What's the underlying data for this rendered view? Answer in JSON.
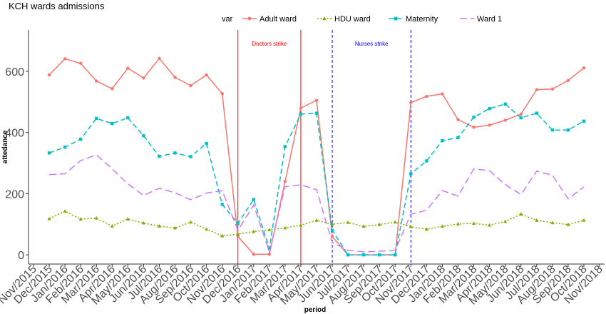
{
  "chart_data": {
    "type": "line",
    "title": "KCH wards admissions",
    "xlabel": "period",
    "ylabel": "attedance",
    "legend_title": "var",
    "legend_position": "top",
    "grid": false,
    "ylim": [
      -30,
      735
    ],
    "y_ticks": [
      0,
      200,
      400,
      600
    ],
    "x_ticks": [
      "Nov/2015",
      "Dec/2015",
      "Jan/2016",
      "Feb/2016",
      "Mar/2016",
      "Apr/2016",
      "May/2016",
      "Jun/2016",
      "Jul/2016",
      "Aug/2016",
      "Sep/2016",
      "Oct/2016",
      "Nov/2016",
      "Dec/2016",
      "Jan/2017",
      "Feb/2017",
      "Mar/2017",
      "Apr/2017",
      "May/2017",
      "Jun/2017",
      "Jul/2017",
      "Aug/2017",
      "Sep/2017",
      "Oct/2017",
      "Nov/2017",
      "Dec/2017",
      "Jan/2018",
      "Feb/2018",
      "Mar/2018",
      "Apr/2018",
      "May/2018",
      "Jun/2018",
      "Jul/2018",
      "Aug/2018",
      "Sep/2018",
      "Oct/2018",
      "Nov/2018"
    ],
    "x": [
      "Dec/2015",
      "Jan/2016",
      "Feb/2016",
      "Mar/2016",
      "Apr/2016",
      "May/2016",
      "Jun/2016",
      "Jul/2016",
      "Aug/2016",
      "Sep/2016",
      "Oct/2016",
      "Nov/2016",
      "Dec/2016",
      "Jan/2017",
      "Feb/2017",
      "Mar/2017",
      "Apr/2017",
      "May/2017",
      "Jun/2017",
      "Jul/2017",
      "Aug/2017",
      "Sep/2017",
      "Oct/2017",
      "Nov/2017",
      "Dec/2017",
      "Jan/2018",
      "Feb/2018",
      "Mar/2018",
      "Apr/2018",
      "May/2018",
      "Jun/2018",
      "Jul/2018",
      "Aug/2018",
      "Sep/2018",
      "Oct/2018"
    ],
    "series": [
      {
        "name": "Adult ward",
        "color": "#f8766d",
        "linestyle": "solid",
        "marker": "circle",
        "values": [
          588,
          641,
          626,
          568,
          543,
          610,
          578,
          642,
          580,
          553,
          588,
          527,
          60,
          2,
          2,
          240,
          480,
          505,
          60,
          0,
          0,
          0,
          0,
          498,
          518,
          526,
          442,
          417,
          424,
          440,
          460,
          540,
          542,
          570,
          611
        ]
      },
      {
        "name": "HDU ward",
        "color": "#7cae00",
        "linestyle": "dotted",
        "marker": "triangle",
        "values": [
          118,
          143,
          117,
          120,
          94,
          117,
          104,
          94,
          88,
          107,
          84,
          62,
          68,
          76,
          82,
          88,
          97,
          113,
          100,
          106,
          93,
          99,
          107,
          92,
          84,
          93,
          101,
          103,
          97,
          109,
          133,
          113,
          105,
          99,
          113
        ]
      },
      {
        "name": "Maternity",
        "color": "#00bfc4",
        "linestyle": "dashed",
        "marker": "square",
        "values": [
          333,
          352,
          378,
          446,
          429,
          448,
          389,
          322,
          333,
          321,
          364,
          165,
          103,
          181,
          21,
          354,
          460,
          463,
          80,
          0,
          0,
          0,
          0,
          265,
          307,
          373,
          383,
          450,
          478,
          493,
          448,
          463,
          408,
          408,
          437
        ]
      },
      {
        "name": "Ward 1",
        "color": "#c77cff",
        "linestyle": "longdash",
        "marker": "none",
        "values": [
          262,
          265,
          308,
          327,
          281,
          232,
          194,
          218,
          203,
          180,
          202,
          210,
          80,
          163,
          10,
          223,
          229,
          213,
          40,
          15,
          10,
          12,
          15,
          133,
          146,
          210,
          192,
          281,
          275,
          230,
          197,
          274,
          260,
          183,
          222
        ]
      }
    ],
    "annotations": [
      {
        "text": "Doctors strike",
        "color": "#ff0000",
        "linestyle": "solid",
        "start": "Dec/2016",
        "end": "Apr/2017"
      },
      {
        "text": "Nurses strike",
        "color": "#0000ff",
        "linestyle": "dashed",
        "start": "Jun/2017",
        "end": "Nov/2017"
      }
    ]
  }
}
